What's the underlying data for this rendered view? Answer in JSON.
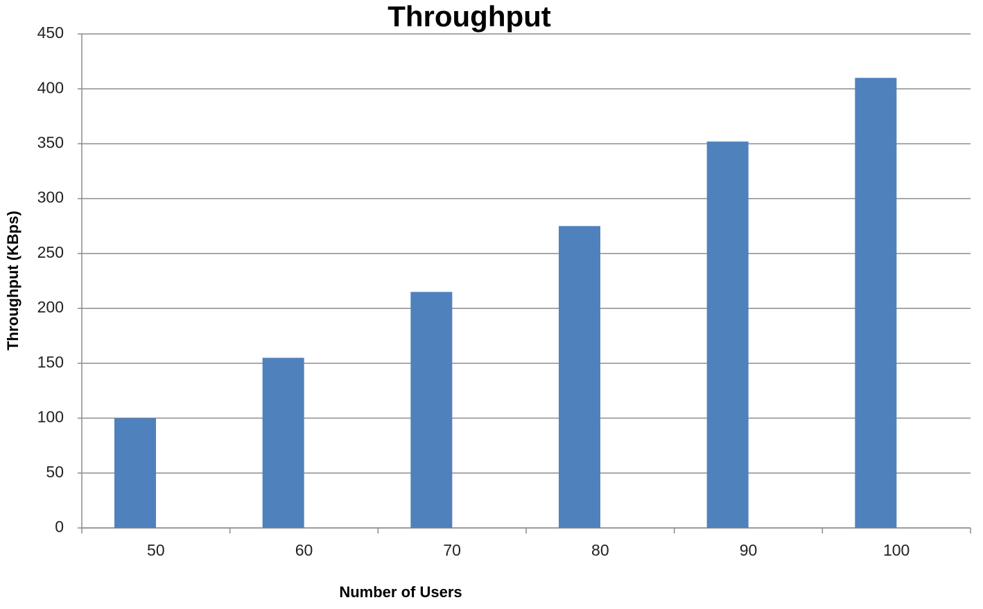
{
  "chart_data": {
    "type": "bar",
    "title": "Throughput",
    "x_label": "Number of Users",
    "y_label": "Throughput (KBps)",
    "categories": [
      "50",
      "60",
      "70",
      "80",
      "90",
      "100"
    ],
    "values": [
      100,
      155,
      215,
      275,
      352,
      410
    ],
    "color": "#4f81bd",
    "ylim": [
      0,
      450
    ],
    "yticks": [
      0,
      50,
      100,
      150,
      200,
      250,
      300,
      350,
      400,
      450
    ],
    "grid": true
  }
}
